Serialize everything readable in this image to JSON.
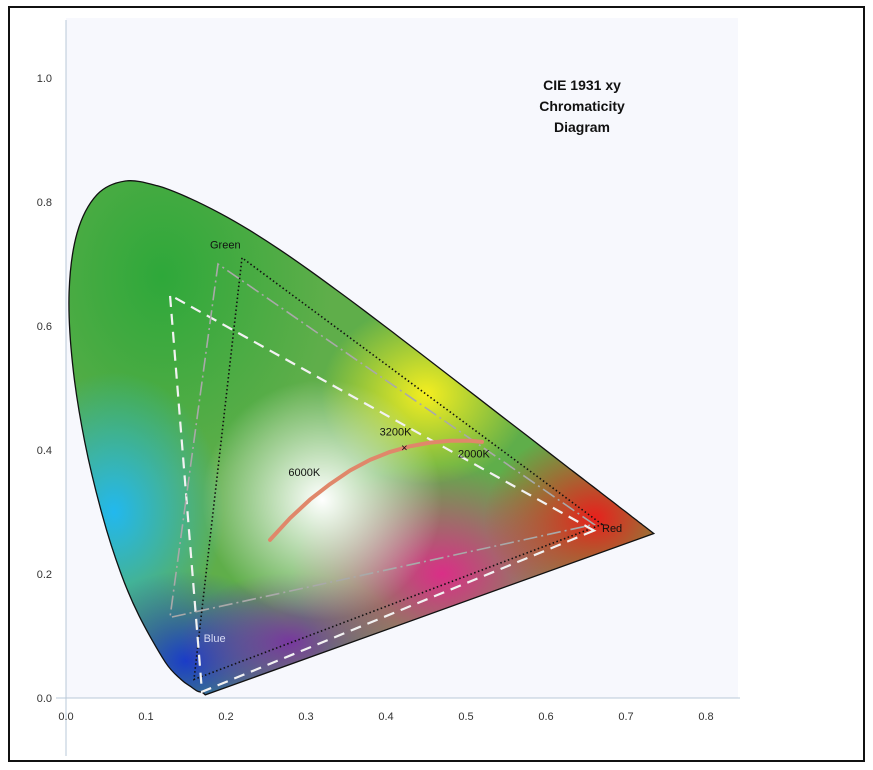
{
  "chart_data": {
    "type": "scatter",
    "title": [
      "CIE 1931 xy",
      "Chromaticity",
      "Diagram"
    ],
    "xlim": [
      0,
      0.8
    ],
    "ylim": [
      0,
      1.0
    ],
    "x_ticks": [
      "0.0",
      "0.1",
      "0.2",
      "0.3",
      "0.4",
      "0.5",
      "0.6",
      "0.7",
      "0.8"
    ],
    "y_ticks": [
      "0.0",
      "0.2",
      "0.4",
      "0.6",
      "0.8",
      "1.0"
    ],
    "grid": false,
    "spectral_locus": [
      [
        0.1741,
        0.005
      ],
      [
        0.1703,
        0.009
      ],
      [
        0.1644,
        0.0109
      ],
      [
        0.1566,
        0.0177
      ],
      [
        0.144,
        0.0297
      ],
      [
        0.1241,
        0.0578
      ],
      [
        0.0913,
        0.1327
      ],
      [
        0.0687,
        0.2007
      ],
      [
        0.0454,
        0.295
      ],
      [
        0.0235,
        0.4127
      ],
      [
        0.0082,
        0.5384
      ],
      [
        0.0039,
        0.6548
      ],
      [
        0.0139,
        0.7502
      ],
      [
        0.0389,
        0.812
      ],
      [
        0.0743,
        0.8338
      ],
      [
        0.1142,
        0.8262
      ],
      [
        0.1547,
        0.8059
      ],
      [
        0.1929,
        0.7816
      ],
      [
        0.2296,
        0.7543
      ],
      [
        0.2658,
        0.7243
      ],
      [
        0.3016,
        0.6923
      ],
      [
        0.3373,
        0.6589
      ],
      [
        0.3731,
        0.6245
      ],
      [
        0.4087,
        0.5896
      ],
      [
        0.4441,
        0.5547
      ],
      [
        0.4788,
        0.5202
      ],
      [
        0.5125,
        0.4866
      ],
      [
        0.5448,
        0.4544
      ],
      [
        0.5752,
        0.4242
      ],
      [
        0.6029,
        0.3965
      ],
      [
        0.627,
        0.3725
      ],
      [
        0.6482,
        0.3514
      ],
      [
        0.6658,
        0.334
      ],
      [
        0.6801,
        0.3197
      ],
      [
        0.6915,
        0.3083
      ],
      [
        0.7006,
        0.2993
      ],
      [
        0.7079,
        0.292
      ],
      [
        0.714,
        0.2859
      ],
      [
        0.719,
        0.2809
      ],
      [
        0.723,
        0.277
      ],
      [
        0.7347,
        0.2653
      ]
    ],
    "gamuts": [
      {
        "style": "dotted-black",
        "red": [
          0.67,
          0.28
        ],
        "green": [
          0.22,
          0.71
        ],
        "blue": [
          0.16,
          0.03
        ]
      },
      {
        "style": "dashed-white",
        "red": [
          0.66,
          0.27
        ],
        "green": [
          0.13,
          0.65
        ],
        "blue": [
          0.17,
          0.01
        ]
      },
      {
        "style": "dashdot-gray",
        "red": [
          0.66,
          0.28
        ],
        "green": [
          0.19,
          0.7
        ],
        "blue": [
          0.13,
          0.13
        ]
      }
    ],
    "planckian_locus": [
      [
        0.255,
        0.255
      ],
      [
        0.28,
        0.29
      ],
      [
        0.305,
        0.32
      ],
      [
        0.33,
        0.345
      ],
      [
        0.355,
        0.367
      ],
      [
        0.38,
        0.384
      ],
      [
        0.405,
        0.397
      ],
      [
        0.43,
        0.406
      ],
      [
        0.455,
        0.412
      ],
      [
        0.48,
        0.415
      ],
      [
        0.505,
        0.415
      ],
      [
        0.52,
        0.413
      ]
    ],
    "markers": [
      {
        "label": "3200K",
        "x": 0.423,
        "y": 0.404
      }
    ],
    "annotations": [
      {
        "text": "Green",
        "x": 0.18,
        "y": 0.725
      },
      {
        "text": "Red",
        "x": 0.67,
        "y": 0.268
      },
      {
        "text": "Blue",
        "x": 0.172,
        "y": 0.09
      },
      {
        "text": "6000K",
        "x": 0.278,
        "y": 0.358
      },
      {
        "text": "3200K",
        "x": 0.392,
        "y": 0.423
      },
      {
        "text": "2000K",
        "x": 0.49,
        "y": 0.388
      }
    ]
  }
}
